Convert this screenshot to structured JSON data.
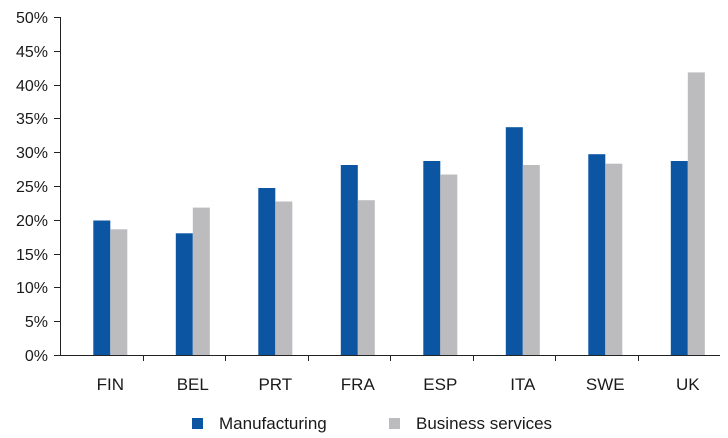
{
  "chart_data": {
    "type": "bar",
    "title": "",
    "xlabel": "",
    "ylabel": "",
    "categories": [
      "FIN",
      "BEL",
      "PRT",
      "FRA",
      "ESP",
      "ITA",
      "SWE",
      "UK"
    ],
    "series": [
      {
        "name": "Manufacturing",
        "color": "#0b55a3",
        "values": [
          19.9,
          18.0,
          24.7,
          28.1,
          28.7,
          33.7,
          29.7,
          28.7
        ]
      },
      {
        "name": "Business services",
        "color": "#bcbcbf",
        "values": [
          18.6,
          21.8,
          22.7,
          22.9,
          26.7,
          28.1,
          28.3,
          41.8
        ]
      }
    ],
    "ylim": [
      0,
      50
    ],
    "yticks": [
      0,
      5,
      10,
      15,
      20,
      25,
      30,
      35,
      40,
      45,
      50
    ],
    "ytick_labels": [
      "0%",
      "5%",
      "10%",
      "15%",
      "20%",
      "25%",
      "30%",
      "35%",
      "40%",
      "45%",
      "50%"
    ],
    "grid": false,
    "legend_position": "bottom"
  }
}
